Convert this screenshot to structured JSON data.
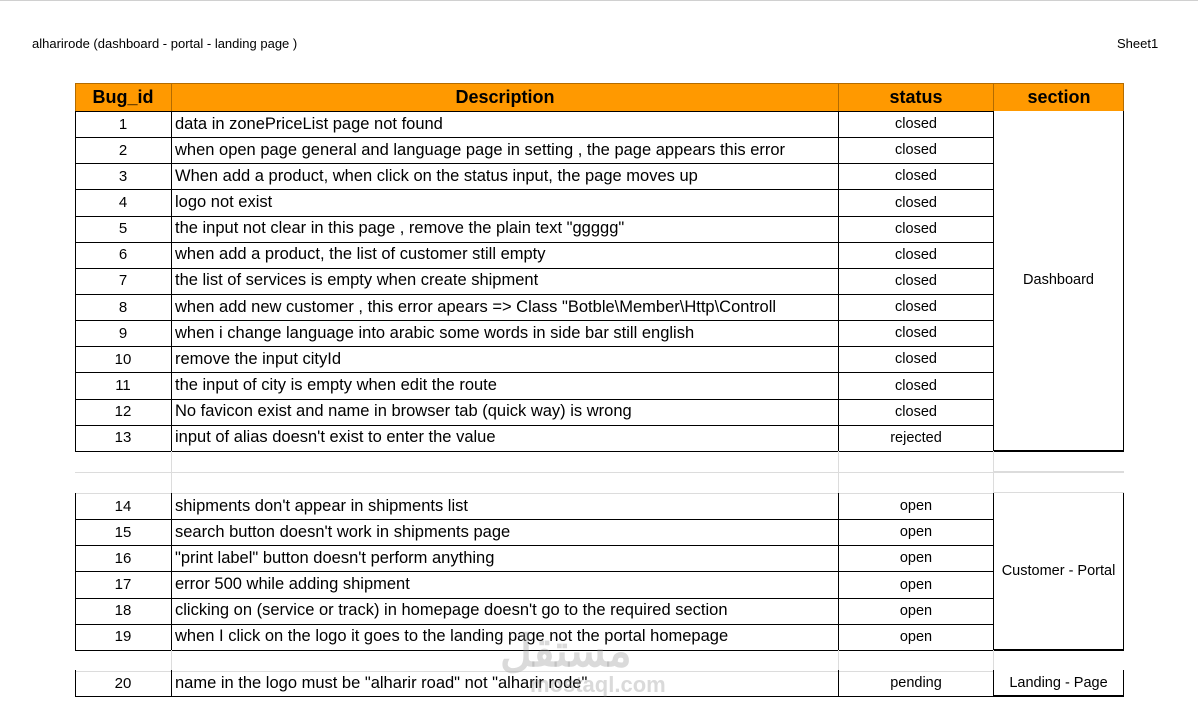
{
  "document": {
    "title": "alharirode (dashboard - portal - landing page )",
    "sheet": "Sheet1"
  },
  "table": {
    "headers": [
      "Bug_id",
      "Description",
      "status",
      "section"
    ],
    "header_color": "#ff9900",
    "groups": [
      {
        "section": "Dashboard",
        "rows": [
          {
            "id": "1",
            "description": "data in zonePriceList page not found",
            "status": "closed"
          },
          {
            "id": "2",
            "description": "when open page general and language page in setting , the page appears this error",
            "status": "closed"
          },
          {
            "id": "3",
            "description": "When add a product, when click on the status input, the page moves up",
            "status": "closed"
          },
          {
            "id": "4",
            "description": "logo not exist",
            "status": "closed"
          },
          {
            "id": "5",
            "description": "the input not clear in this page , remove the plain text \"ggggg\"",
            "status": "closed"
          },
          {
            "id": "6",
            "description": "when add a product, the list of customer still empty",
            "status": "closed"
          },
          {
            "id": "7",
            "description": "the list of services is empty when create shipment",
            "status": "closed"
          },
          {
            "id": "8",
            "description": "when add new customer , this error apears => Class \"Botble\\Member\\Http\\Controll",
            "status": "closed"
          },
          {
            "id": "9",
            "description": "when i change language into arabic some words in side bar still english",
            "status": "closed"
          },
          {
            "id": "10",
            "description": "remove the input cityId",
            "status": "closed"
          },
          {
            "id": "11",
            "description": "the input of city is empty when edit the route",
            "status": "closed"
          },
          {
            "id": "12",
            "description": "No favicon exist and name in browser tab (quick way) is wrong",
            "status": "closed"
          },
          {
            "id": "13",
            "description": "input of alias doesn't exist to enter the value",
            "status": "rejected"
          }
        ]
      },
      {
        "section": "Customer - Portal",
        "rows": [
          {
            "id": "14",
            "description": "shipments don't appear in shipments list",
            "status": "open"
          },
          {
            "id": "15",
            "description": "search button doesn't work in shipments page",
            "status": "open"
          },
          {
            "id": "16",
            "description": "\"print label\" button doesn't perform anything",
            "status": "open"
          },
          {
            "id": "17",
            "description": "error 500 while adding shipment",
            "status": "open"
          },
          {
            "id": "18",
            "description": "clicking on (service or track) in homepage doesn't go to the required section",
            "status": "open"
          },
          {
            "id": "19",
            "description": "when I click on the logo it goes to the landing page not the portal homepage",
            "status": "open"
          }
        ]
      },
      {
        "section": "Landing - Page",
        "rows": [
          {
            "id": "20",
            "description": "name in the logo must be \"alharir road\" not \"alharir rode\"",
            "status": "pending"
          }
        ]
      }
    ]
  },
  "watermark": {
    "arabic": "مستقل",
    "latin": "mostaql.com"
  }
}
